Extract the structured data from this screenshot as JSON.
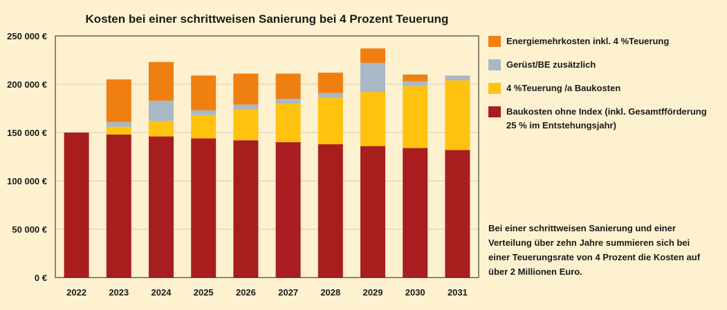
{
  "chart_data": {
    "type": "bar",
    "stacked": true,
    "title": "Kosten bei einer schrittweisen Sanierung bei 4 Prozent Teuerung",
    "categories": [
      "2022",
      "2023",
      "2024",
      "2025",
      "2026",
      "2027",
      "2028",
      "2029",
      "2030",
      "2031"
    ],
    "ylim": [
      0,
      250000
    ],
    "yticks": [
      {
        "value": 0,
        "label": "0 €"
      },
      {
        "value": 50000,
        "label": "50 000 €"
      },
      {
        "value": 100000,
        "label": "100 000 €"
      },
      {
        "value": 150000,
        "label": "150 000 €"
      },
      {
        "value": 200000,
        "label": "200 000 €"
      },
      {
        "value": 250000,
        "label": "250 000 €"
      }
    ],
    "grid": true,
    "series": [
      {
        "name": "Baukosten ohne Index (inkl. Gesamtfförderung 25 % im Entstehungsjahr)",
        "color": "#a81e1e",
        "values": [
          150000,
          148000,
          146000,
          144000,
          142000,
          140000,
          138000,
          136000,
          134000,
          132000
        ]
      },
      {
        "name": "4 %Teuerung /a Baukosten",
        "color": "#ffc20e",
        "values": [
          0,
          8000,
          16000,
          24000,
          32000,
          40000,
          48000,
          56000,
          64000,
          72000
        ]
      },
      {
        "name": "Gerüst/BE zusätzlich",
        "color": "#a8b8c6",
        "values": [
          0,
          5000,
          21000,
          5000,
          5000,
          5000,
          5000,
          30000,
          5000,
          5000
        ]
      },
      {
        "name": "Energiemehrkosten inkl. 4 %Teuerung",
        "color": "#f07f12",
        "values": [
          0,
          44000,
          40000,
          36000,
          32000,
          26000,
          21000,
          15000,
          7000,
          0
        ]
      }
    ]
  },
  "legend": [
    {
      "color": "#f07f12",
      "lines": [
        "Energiemehrkosten inkl. 4 %Teuerung"
      ]
    },
    {
      "color": "#a8b8c6",
      "lines": [
        "Gerüst/BE zusätzlich"
      ]
    },
    {
      "color": "#ffc20e",
      "lines": [
        "4 %Teuerung /a Baukosten"
      ]
    },
    {
      "color": "#a81e1e",
      "lines": [
        "Baukosten ohne Index (inkl. Gesamtfförderung",
        "25 % im Entstehungsjahr)"
      ]
    }
  ],
  "note": {
    "lines": [
      "Bei einer schrittweisen Sanierung und einer",
      "Verteilung über zehn Jahre summieren sich bei",
      "einer Teuerungsrate von 4 Prozent die Kosten auf",
      "über 2 Millionen Euro."
    ]
  }
}
